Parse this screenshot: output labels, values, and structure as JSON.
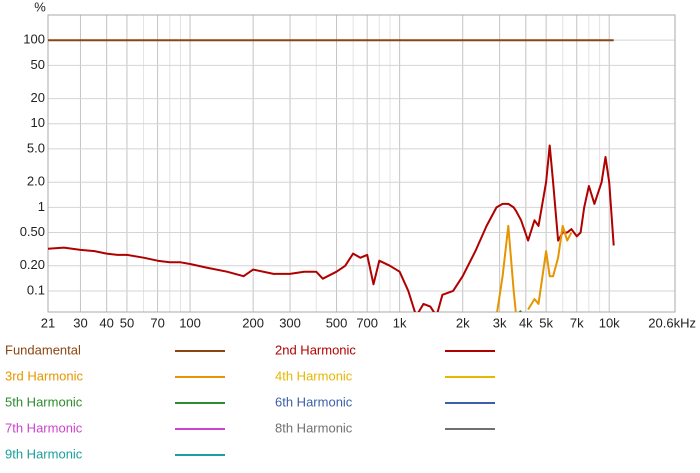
{
  "chart_data": {
    "type": "line",
    "y_label": "%",
    "xscale": "log",
    "yscale": "log",
    "grid": true,
    "xlim": [
      21,
      20600
    ],
    "ylim": [
      0.056,
      200
    ],
    "xticks": [
      21,
      30,
      40,
      50,
      70,
      100,
      200,
      300,
      500,
      700,
      {
        "value": 1000,
        "label": "1k"
      },
      {
        "value": 2000,
        "label": "2k"
      },
      {
        "value": 3000,
        "label": "3k"
      },
      {
        "value": 4000,
        "label": "4k"
      },
      {
        "value": 5000,
        "label": "5k"
      },
      {
        "value": 7000,
        "label": "7k"
      },
      {
        "value": 10000,
        "label": "10k"
      },
      {
        "value": 20600,
        "label": "20.6kHz"
      }
    ],
    "xminorticks": [
      60,
      80,
      90,
      400,
      600,
      800,
      900,
      6000,
      8000,
      9000
    ],
    "yticks": [
      100,
      50,
      20,
      10,
      {
        "value": 5,
        "label": "5.0"
      },
      {
        "value": 2,
        "label": "2.0"
      },
      1,
      {
        "value": 0.5,
        "label": "0.50"
      },
      {
        "value": 0.2,
        "label": "0.20"
      },
      0.1
    ],
    "x": [
      21,
      25,
      30,
      35,
      40,
      45,
      50,
      60,
      70,
      80,
      90,
      100,
      120,
      150,
      180,
      200,
      250,
      300,
      350,
      400,
      430,
      500,
      550,
      600,
      650,
      700,
      750,
      800,
      900,
      1000,
      1100,
      1200,
      1300,
      1400,
      1500,
      1600,
      1800,
      2000,
      2300,
      2600,
      2900,
      3100,
      3300,
      3500,
      3600,
      3800,
      4100,
      4400,
      4600,
      5000,
      5200,
      5400,
      5700,
      6000,
      6300,
      6600,
      7000,
      7300,
      7600,
      8000,
      8500,
      9200,
      9600,
      10000,
      10500
    ],
    "series": [
      {
        "name": "Fundamental",
        "color": "#8b4513",
        "values": [
          100,
          100,
          100,
          100,
          100,
          100,
          100,
          100,
          100,
          100,
          100,
          100,
          100,
          100,
          100,
          100,
          100,
          100,
          100,
          100,
          100,
          100,
          100,
          100,
          100,
          100,
          100,
          100,
          100,
          100,
          100,
          100,
          100,
          100,
          100,
          100,
          100,
          100,
          100,
          100,
          100,
          100,
          100,
          100,
          100,
          100,
          100,
          100,
          100,
          100,
          100,
          100,
          100,
          100,
          100,
          100,
          100,
          100,
          100,
          100,
          100,
          100,
          100,
          100,
          100
        ]
      },
      {
        "name": "2nd Harmonic",
        "color": "#b00000",
        "values": [
          0.32,
          0.33,
          0.31,
          0.3,
          0.28,
          0.27,
          0.27,
          0.25,
          0.23,
          0.22,
          0.22,
          0.21,
          0.19,
          0.17,
          0.15,
          0.18,
          0.16,
          0.16,
          0.17,
          0.17,
          0.14,
          0.17,
          0.2,
          0.28,
          0.25,
          0.27,
          0.12,
          0.23,
          0.2,
          0.17,
          0.1,
          0.05,
          0.07,
          0.065,
          0.05,
          0.09,
          0.1,
          0.15,
          0.3,
          0.6,
          1.0,
          1.1,
          1.1,
          1.0,
          0.9,
          0.7,
          0.4,
          0.7,
          0.6,
          2.0,
          5.5,
          2.0,
          0.4,
          0.5,
          0.5,
          0.55,
          0.45,
          0.5,
          1.0,
          1.8,
          1.1,
          2.0,
          4.0,
          2.0,
          0.35
        ]
      },
      {
        "name": "3rd Harmonic",
        "color": "#e69500",
        "values": [
          null,
          null,
          null,
          null,
          null,
          null,
          null,
          null,
          null,
          null,
          null,
          null,
          null,
          null,
          null,
          null,
          null,
          null,
          null,
          null,
          null,
          null,
          null,
          null,
          null,
          null,
          null,
          null,
          null,
          null,
          null,
          null,
          null,
          null,
          null,
          null,
          null,
          null,
          null,
          null,
          0.05,
          0.15,
          0.6,
          0.1,
          0.05,
          null,
          0.06,
          0.08,
          0.07,
          0.3,
          0.15,
          0.15,
          0.25,
          0.6,
          0.4,
          0.5,
          null,
          null,
          null,
          null,
          null,
          null,
          null,
          null,
          null
        ]
      },
      {
        "name": "4th Harmonic",
        "color": "#e6b800",
        "values": [
          null,
          null,
          null,
          null,
          null,
          null,
          null,
          null,
          null,
          null,
          null,
          null,
          null,
          null,
          null,
          null,
          null,
          null,
          null,
          null,
          null,
          null,
          null,
          null,
          null,
          null,
          null,
          null,
          null,
          null,
          null,
          null,
          null,
          null,
          null,
          null,
          null,
          null,
          null,
          null,
          null,
          null,
          null,
          null,
          null,
          null,
          null,
          null,
          null,
          null,
          null,
          null,
          null,
          null,
          null,
          null,
          null,
          null,
          null,
          null,
          null,
          null,
          null,
          null,
          null
        ]
      },
      {
        "name": "5th Harmonic",
        "color": "#2e8b2e",
        "values": [
          null,
          null,
          null,
          null,
          null,
          null,
          null,
          null,
          null,
          null,
          null,
          null,
          null,
          null,
          null,
          null,
          null,
          null,
          null,
          null,
          null,
          null,
          null,
          null,
          null,
          null,
          null,
          null,
          null,
          null,
          null,
          null,
          null,
          null,
          null,
          null,
          null,
          null,
          null,
          null,
          null,
          null,
          null,
          null,
          0.05,
          0.058,
          null,
          null,
          null,
          null,
          null,
          null,
          null,
          null,
          null,
          null,
          null,
          null,
          null,
          null,
          null,
          null,
          null,
          null,
          null
        ]
      },
      {
        "name": "6th Harmonic",
        "color": "#3c5fa8",
        "values": [
          null,
          null,
          null,
          null,
          null,
          null,
          null,
          null,
          null,
          null,
          null,
          null,
          null,
          null,
          null,
          null,
          null,
          null,
          null,
          null,
          null,
          null,
          null,
          null,
          null,
          null,
          null,
          null,
          null,
          null,
          null,
          null,
          null,
          null,
          null,
          null,
          null,
          null,
          null,
          null,
          null,
          null,
          null,
          null,
          null,
          null,
          null,
          null,
          null,
          null,
          null,
          null,
          null,
          null,
          null,
          null,
          null,
          null,
          null,
          null,
          null,
          null,
          null,
          null,
          null
        ]
      },
      {
        "name": "7th Harmonic",
        "color": "#cc44cc",
        "values": [
          null,
          null,
          null,
          null,
          null,
          null,
          null,
          null,
          null,
          null,
          null,
          null,
          null,
          null,
          null,
          null,
          null,
          null,
          null,
          null,
          null,
          null,
          null,
          null,
          null,
          null,
          null,
          null,
          null,
          null,
          null,
          null,
          null,
          null,
          null,
          null,
          null,
          null,
          null,
          null,
          null,
          null,
          null,
          null,
          null,
          null,
          null,
          null,
          null,
          null,
          null,
          null,
          null,
          null,
          null,
          null,
          null,
          null,
          null,
          null,
          null,
          null,
          null,
          null,
          null
        ]
      },
      {
        "name": "8th Harmonic",
        "color": "#707070",
        "values": [
          null,
          null,
          null,
          null,
          null,
          null,
          null,
          null,
          null,
          null,
          null,
          null,
          null,
          null,
          null,
          null,
          null,
          null,
          null,
          null,
          null,
          null,
          null,
          null,
          null,
          null,
          null,
          null,
          null,
          null,
          null,
          null,
          null,
          null,
          null,
          null,
          null,
          null,
          null,
          null,
          null,
          null,
          null,
          null,
          null,
          null,
          null,
          null,
          null,
          null,
          null,
          null,
          null,
          null,
          null,
          null,
          null,
          null,
          null,
          null,
          null,
          null,
          null,
          null,
          null
        ]
      },
      {
        "name": "9th Harmonic",
        "color": "#1a9e9e",
        "values": [
          null,
          null,
          null,
          null,
          null,
          null,
          null,
          null,
          null,
          null,
          null,
          null,
          null,
          null,
          null,
          null,
          null,
          null,
          null,
          null,
          null,
          null,
          null,
          null,
          null,
          null,
          null,
          null,
          null,
          null,
          null,
          null,
          null,
          null,
          null,
          null,
          null,
          null,
          null,
          null,
          null,
          null,
          null,
          null,
          null,
          null,
          null,
          null,
          null,
          null,
          null,
          null,
          null,
          null,
          null,
          null,
          null,
          null,
          null,
          null,
          null,
          null,
          null,
          null,
          null
        ]
      }
    ]
  }
}
